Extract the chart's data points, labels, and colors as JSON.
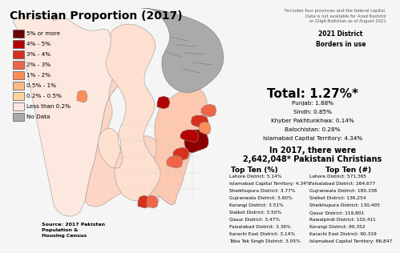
{
  "title": "Christian Proportion (2017)",
  "background_color": "#f5f5f5",
  "legend_labels": [
    "5% or more",
    "4% - 5%",
    "3% - 4%",
    "2% - 3%",
    "1% - 2%",
    "0.5% - 1%",
    "0.2% - 0.5%",
    "Less than 0.2%",
    "No Data"
  ],
  "legend_colors": [
    "#6b0000",
    "#b30000",
    "#d7301f",
    "#ef6548",
    "#fc8d59",
    "#fdbb84",
    "#fdd49e",
    "#fde8df",
    "#aaaaaa"
  ],
  "total_text": "Total: 1.27%*",
  "province_stats": [
    "Punjab: 1.88%",
    "Sindh: 0.85%",
    "Khyber Pakhtunkhwa: 0.14%",
    "Balochistan: 0.28%",
    "Islamabad Capital Territory: 4.34%"
  ],
  "in_2017_line1": "In 2017, there were",
  "in_2017_line2": "2,642,048* Pakistani Christians",
  "top_ten_pct_title": "Top Ten (%)",
  "top_ten_pct": [
    "Lahore District: 5.14%",
    "Islamabad Capital Territory: 4.34%",
    "Sheikhupura District: 3.77%",
    "Gujranwala District: 3.60%",
    "Korangi District: 3.51%",
    "Sialkot District: 3.50%",
    "Qasur District: 3.47%",
    "Faisalabad District: 3.36%",
    "Karachi East District: 3.14%",
    "Toba Tek Singh District: 3.05%"
  ],
  "top_ten_num_title": "Top Ten (#)",
  "top_ten_num": [
    "Lahore District: 571,365",
    "Faisalabad District: 264,677",
    "Gujranwala District: 180,338",
    "Sialkot District: 136,254",
    "Sheikhupura District: 130,405",
    "Qasur District: 119,801",
    "Rawalpindi District: 102,411",
    "Korangi District: 90,352",
    "Karachi East District: 90,319",
    "Islamabad Capital Territory: 86,847"
  ],
  "source_text": "Source: 2017 Pakistan\nPopulation &\nHousing Census",
  "footnote": "*Includes four provinces and the federal capital.\nData is not available for Azad Kashmir\nor Gilgit-Baltistan as of August 2021",
  "district_borders_text": "2021 District\nBorders in use"
}
